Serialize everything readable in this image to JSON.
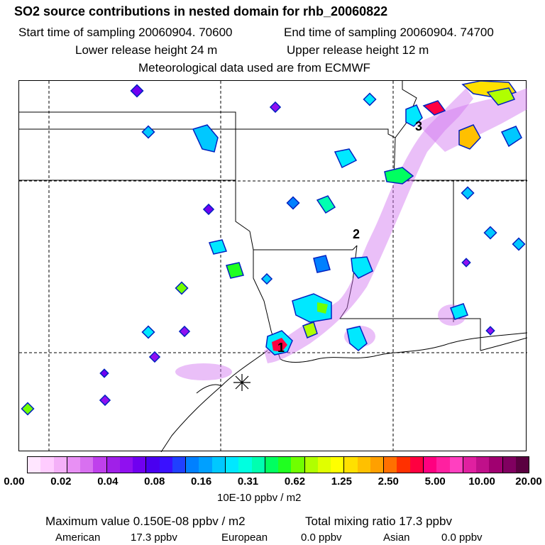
{
  "header": {
    "title": "SO2 source contributions in nested domain for rhb_20060822",
    "start_time": "Start time of sampling 20060904. 70600",
    "end_time": "End time of sampling 20060904. 74700",
    "lower_height": "Lower release height   24 m",
    "upper_height": "Upper release height   12 m",
    "met_data": "Meteorological data used are from ECMWF"
  },
  "map": {
    "markers": [
      "1",
      "2",
      "3"
    ],
    "marker_color": "#000000"
  },
  "colorbar": {
    "ticks": [
      "0.00",
      "0.02",
      "0.04",
      "0.08",
      "0.16",
      "0.31",
      "0.62",
      "1.25",
      "2.50",
      "5.00",
      "10.00",
      "20.00"
    ],
    "colors": [
      "#ffe6ff",
      "#ffccff",
      "#f4b0f8",
      "#e890f4",
      "#d870f0",
      "#bf40ec",
      "#a020e8",
      "#9010f0",
      "#7000f0",
      "#4a00f0",
      "#3a10ff",
      "#2040ff",
      "#0080ff",
      "#00a0ff",
      "#00c8ff",
      "#00e8ff",
      "#00ffe0",
      "#00ffb0",
      "#00ff60",
      "#20ff20",
      "#70ff00",
      "#b0ff00",
      "#e0ff00",
      "#ffff00",
      "#ffe000",
      "#ffc000",
      "#ffa000",
      "#ff7000",
      "#ff3000",
      "#ff0040",
      "#ff0080",
      "#ff20a0",
      "#ff40c0",
      "#e020a0",
      "#c0108a",
      "#a00070",
      "#800060",
      "#5a0040"
    ],
    "units": "10E-10 ppbv / m2"
  },
  "summary": {
    "max_value": "Maximum value  0.150E-08 ppbv / m2",
    "total_mixing": "Total mixing ratio       17.3 ppbv",
    "american_label": "American",
    "american_value": "17.3 ppbv",
    "european_label": "European",
    "european_value": "0.0 ppbv",
    "asian_label": "Asian",
    "asian_value": "0.0 ppbv"
  }
}
